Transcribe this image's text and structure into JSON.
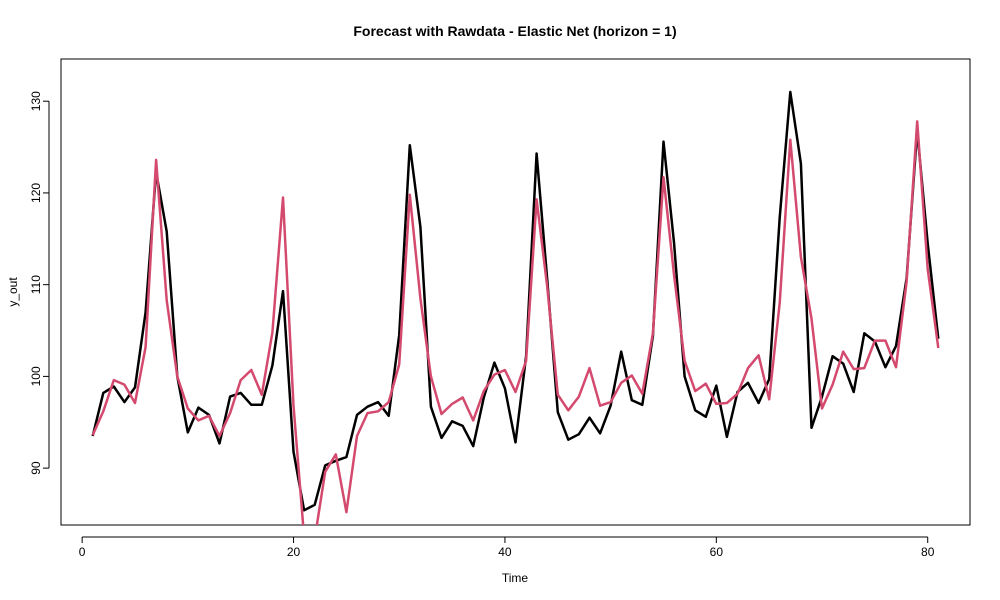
{
  "chart_data": {
    "type": "line",
    "title": "Forecast with Rawdata - Elastic Net (horizon = 1)",
    "xlabel": "Time",
    "ylabel": "y_out",
    "xlim": [
      -2,
      84
    ],
    "ylim": [
      83.8,
      134.6
    ],
    "x_ticks": [
      0,
      20,
      40,
      60,
      80
    ],
    "y_ticks": [
      90,
      100,
      110,
      120,
      130
    ],
    "grid": false,
    "legend": "none",
    "x": [
      1,
      2,
      3,
      4,
      5,
      6,
      7,
      8,
      9,
      10,
      11,
      12,
      13,
      14,
      15,
      16,
      17,
      18,
      19,
      20,
      21,
      22,
      23,
      24,
      25,
      26,
      27,
      28,
      29,
      30,
      31,
      32,
      33,
      34,
      35,
      36,
      37,
      38,
      39,
      40,
      41,
      42,
      43,
      44,
      45,
      46,
      47,
      48,
      49,
      50,
      51,
      52,
      53,
      54,
      55,
      56,
      57,
      58,
      59,
      60,
      61,
      62,
      63,
      64,
      65,
      66,
      67,
      68,
      69,
      70,
      71,
      72,
      73,
      74,
      75,
      76,
      77,
      78,
      79,
      80,
      81
    ],
    "series": [
      {
        "color": "#000000",
        "values": [
          93.5,
          98.2,
          98.9,
          97.2,
          98.8,
          107.0,
          122.3,
          115.8,
          100.0,
          93.9,
          96.6,
          95.8,
          92.7,
          97.8,
          98.2,
          96.9,
          96.9,
          101.2,
          109.3,
          91.8,
          85.4,
          86.0,
          90.3,
          90.8,
          91.2,
          95.8,
          96.7,
          97.2,
          95.7,
          104.5,
          125.2,
          116.3,
          96.7,
          93.3,
          95.1,
          94.6,
          92.4,
          97.7,
          101.5,
          98.7,
          92.8,
          102.2,
          124.3,
          110.6,
          96.1,
          93.1,
          93.7,
          95.5,
          93.8,
          96.8,
          102.7,
          97.4,
          96.9,
          104.4,
          125.6,
          114.6,
          100.0,
          96.3,
          95.6,
          99.0,
          93.4,
          98.3,
          99.3,
          97.1,
          99.7,
          117.3,
          131.0,
          123.2,
          94.4,
          97.8,
          102.2,
          101.4,
          98.3,
          104.7,
          103.8,
          101.0,
          103.3,
          110.7,
          126.8,
          114.5,
          104.1
        ]
      },
      {
        "color": "#d44a6e",
        "values": [
          93.6,
          96.2,
          99.6,
          99.1,
          97.1,
          103.2,
          123.6,
          108.3,
          100.0,
          96.5,
          95.2,
          95.7,
          93.5,
          96.0,
          99.6,
          100.7,
          98.0,
          104.8,
          119.5,
          96.8,
          82.5,
          82.3,
          89.6,
          91.5,
          85.2,
          93.5,
          96.0,
          96.2,
          97.2,
          101.3,
          119.8,
          108.5,
          100.0,
          95.9,
          97.0,
          97.7,
          95.2,
          98.4,
          100.2,
          100.7,
          98.3,
          101.7,
          119.3,
          109.8,
          98.0,
          96.3,
          97.8,
          100.9,
          96.8,
          97.2,
          99.3,
          100.1,
          98.1,
          104.7,
          121.7,
          111.1,
          101.7,
          98.4,
          99.2,
          97.0,
          97.1,
          98.1,
          100.9,
          102.3,
          97.5,
          108.0,
          125.8,
          113.0,
          106.3,
          96.5,
          99.1,
          102.7,
          100.8,
          100.9,
          103.9,
          103.9,
          101.0,
          110.3,
          127.8,
          111.7,
          103.1
        ]
      }
    ]
  }
}
